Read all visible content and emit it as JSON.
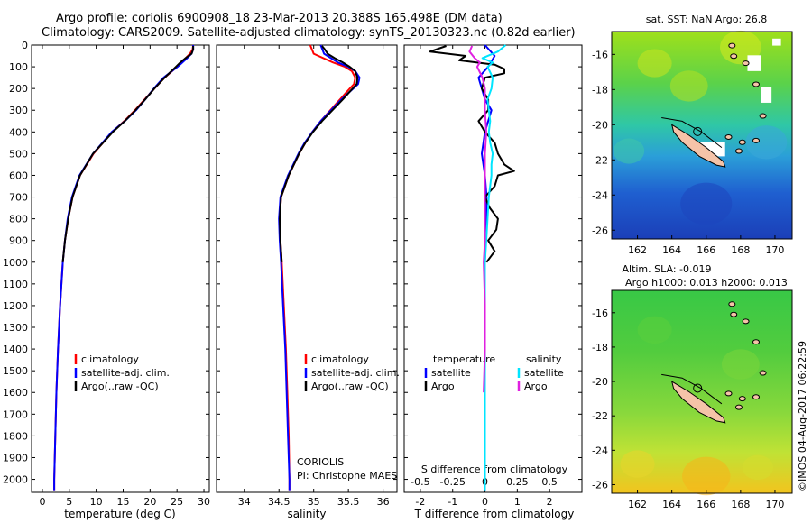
{
  "header": {
    "line1": "Argo profile: coriolis 6900908_18 23-Mar-2013 20.388S 165.498E (DM data)",
    "line2": "Climatology: CARS2009. Satellite-adjusted climatology: synTS_20130323.nc (0.82d earlier)"
  },
  "colors": {
    "climatology": "#ff0000",
    "satellite": "#0000ff",
    "argo": "#000000",
    "satellite_salinity": "#00e5ff",
    "argo_salinity": "#e020e0"
  },
  "depth_ticks": [
    0,
    100,
    200,
    300,
    400,
    500,
    600,
    700,
    800,
    900,
    1000,
    1100,
    1200,
    1300,
    1400,
    1500,
    1600,
    1700,
    1800,
    1900,
    2000
  ],
  "chart_data": [
    {
      "type": "line",
      "id": "temperature",
      "xlabel": "temperature (deg C)",
      "xlim": [
        -2,
        31
      ],
      "xticks": [
        0,
        5,
        10,
        15,
        20,
        25,
        30
      ],
      "ylim": [
        0,
        2060
      ],
      "legend": [
        "climatology",
        "satellite-adj. clim.",
        "Argo(..raw -QC)"
      ],
      "series": [
        {
          "name": "climatology",
          "color": "#ff0000",
          "depth": [
            0,
            20,
            40,
            60,
            80,
            100,
            150,
            200,
            250,
            300,
            350,
            400,
            500,
            600,
            700,
            800,
            900,
            1000,
            1200,
            1400,
            1600,
            1800,
            2000,
            2050
          ],
          "values": [
            28.0,
            27.9,
            27.4,
            26.6,
            25.8,
            25.0,
            22.7,
            20.8,
            19.0,
            17.2,
            15.2,
            13.0,
            9.5,
            7.0,
            5.6,
            4.8,
            4.2,
            3.8,
            3.3,
            2.9,
            2.6,
            2.4,
            2.2,
            2.2
          ]
        },
        {
          "name": "satellite-adj. clim.",
          "color": "#0000ff",
          "depth": [
            0,
            20,
            40,
            60,
            80,
            100,
            150,
            200,
            250,
            300,
            350,
            400,
            500,
            600,
            700,
            800,
            900,
            1000,
            1200,
            1400,
            1600,
            1800,
            2000,
            2050
          ],
          "values": [
            28.0,
            28.0,
            27.7,
            26.9,
            26.0,
            25.1,
            22.5,
            20.7,
            19.1,
            17.4,
            15.3,
            12.9,
            9.4,
            6.9,
            5.5,
            4.7,
            4.2,
            3.8,
            3.3,
            2.9,
            2.6,
            2.4,
            2.2,
            2.2
          ]
        },
        {
          "name": "Argo(..raw -QC)",
          "color": "#000000",
          "depth": [
            4,
            20,
            40,
            60,
            80,
            100,
            150,
            200,
            250,
            300,
            350,
            400,
            500,
            600,
            700,
            800,
            900,
            1000
          ],
          "values": [
            28.0,
            28.0,
            27.7,
            26.6,
            25.6,
            24.8,
            22.7,
            20.8,
            19.1,
            17.3,
            15.3,
            13.1,
            9.4,
            7.0,
            5.6,
            4.8,
            4.2,
            3.8
          ]
        }
      ]
    },
    {
      "type": "line",
      "id": "salinity",
      "xlabel": "salinity",
      "xlim": [
        33.6,
        36.2
      ],
      "xticks": [
        34,
        34.5,
        35,
        35.5,
        36
      ],
      "ylim": [
        0,
        2060
      ],
      "legend": [
        "climatology",
        "satellite-adj. clim.",
        "Argo(..raw -QC)"
      ],
      "annotation": [
        "CORIOLIS",
        "PI: Christophe MAES"
      ],
      "series": [
        {
          "name": "climatology",
          "color": "#ff0000",
          "depth": [
            0,
            40,
            80,
            100,
            120,
            150,
            180,
            200,
            250,
            300,
            350,
            400,
            450,
            500,
            600,
            700,
            800,
            900,
            1000,
            1200,
            1400,
            1600,
            1800,
            2000,
            2050
          ],
          "values": [
            34.95,
            35.0,
            35.28,
            35.45,
            35.55,
            35.6,
            35.58,
            35.52,
            35.38,
            35.24,
            35.1,
            34.98,
            34.88,
            34.79,
            34.64,
            34.53,
            34.51,
            34.52,
            34.54,
            34.57,
            34.6,
            34.62,
            34.64,
            34.65,
            34.65
          ]
        },
        {
          "name": "satellite-adj. clim.",
          "color": "#0000ff",
          "depth": [
            0,
            40,
            80,
            100,
            120,
            150,
            180,
            200,
            250,
            300,
            350,
            400,
            450,
            500,
            600,
            700,
            800,
            900,
            1000,
            1200,
            1400,
            1600,
            1800,
            2000,
            2050
          ],
          "values": [
            35.1,
            35.15,
            35.35,
            35.5,
            35.6,
            35.66,
            35.64,
            35.57,
            35.4,
            35.25,
            35.1,
            34.98,
            34.87,
            34.78,
            34.63,
            34.52,
            34.5,
            34.51,
            34.53,
            34.56,
            34.59,
            34.61,
            34.63,
            34.65,
            34.65
          ]
        },
        {
          "name": "Argo(..raw -QC)",
          "color": "#000000",
          "depth": [
            4,
            20,
            40,
            60,
            80,
            100,
            120,
            150,
            180,
            200,
            250,
            300,
            350,
            400,
            450,
            500,
            600,
            700,
            800,
            900,
            1000
          ],
          "values": [
            35.12,
            35.16,
            35.2,
            35.3,
            35.42,
            35.52,
            35.6,
            35.63,
            35.62,
            35.56,
            35.42,
            35.27,
            35.12,
            34.99,
            34.88,
            34.79,
            34.64,
            34.53,
            34.51,
            34.52,
            34.54
          ]
        }
      ]
    },
    {
      "type": "line",
      "id": "difference",
      "xlabel_bottom": "T difference from climatology",
      "xlabel_top": "S difference from climatology",
      "xlim": [
        -2.5,
        3.0
      ],
      "xticks": [
        -2,
        -1,
        0,
        1,
        2
      ],
      "s_xticks": [
        -0.5,
        -0.25,
        0,
        0.25,
        0.5
      ],
      "s_scale": 4,
      "ylim": [
        0,
        2060
      ],
      "legend_temperature_title": "temperature",
      "legend_salinity_title": "salinity",
      "legend_temperature": [
        "satellite",
        "Argo"
      ],
      "legend_salinity": [
        "satellite",
        "Argo"
      ],
      "series": [
        {
          "name": "temperature satellite",
          "color": "#0000ff",
          "depth": [
            0,
            50,
            100,
            150,
            200,
            250,
            300,
            350,
            400,
            450,
            500,
            600,
            700,
            800,
            900,
            1000,
            1200,
            1400,
            1600,
            1800,
            2000,
            2050
          ],
          "values": [
            0.0,
            0.3,
            0.1,
            -0.2,
            -0.1,
            0.0,
            0.2,
            0.1,
            0.0,
            -0.05,
            -0.1,
            0.0,
            0.05,
            0.05,
            0.02,
            0.0,
            0.0,
            0.0,
            0.0,
            0.0,
            0.0,
            0.0
          ]
        },
        {
          "name": "temperature Argo",
          "color": "#000000",
          "depth": [
            4,
            30,
            50,
            70,
            90,
            110,
            130,
            150,
            200,
            250,
            300,
            350,
            400,
            450,
            500,
            550,
            580,
            600,
            650,
            700,
            750,
            800,
            850,
            900,
            950,
            1000
          ],
          "values": [
            -1.2,
            -1.7,
            -0.6,
            -0.8,
            0.3,
            0.6,
            0.6,
            0.0,
            -0.1,
            0.1,
            0.1,
            -0.2,
            0.0,
            0.3,
            0.4,
            0.6,
            0.9,
            0.4,
            0.3,
            0.0,
            0.15,
            0.4,
            0.35,
            0.1,
            0.3,
            0.05
          ]
        },
        {
          "name": "salinity satellite",
          "color": "#00e5ff",
          "depth": [
            0,
            30,
            60,
            80,
            100,
            150,
            200,
            250,
            300,
            350,
            400,
            450,
            500,
            550,
            600,
            700,
            800,
            900,
            1000,
            1200,
            1400,
            1600,
            1800,
            2000,
            2050
          ],
          "values": [
            0.16,
            0.1,
            -0.02,
            0.06,
            0.02,
            0.06,
            0.05,
            0.02,
            0.03,
            0.04,
            0.03,
            0.04,
            0.06,
            0.05,
            0.05,
            0.03,
            0.02,
            0.01,
            0.0,
            0.0,
            0.0,
            0.0,
            0.0,
            0.0,
            0.0
          ]
        },
        {
          "name": "salinity Argo",
          "color": "#e020e0",
          "depth": [
            4,
            30,
            60,
            80,
            100,
            150,
            200,
            300,
            400,
            500,
            600,
            700,
            800,
            900,
            1000,
            1200,
            1400,
            1600
          ],
          "values": [
            -0.1,
            -0.12,
            -0.08,
            -0.04,
            -0.06,
            -0.02,
            0.0,
            0.0,
            0.01,
            0.0,
            0.0,
            0.0,
            0.0,
            0.0,
            -0.01,
            0.0,
            0.0,
            -0.01
          ]
        }
      ]
    },
    {
      "type": "heatmap",
      "id": "sst-map",
      "title": "sat. SST: NaN Argo: 26.8",
      "xticks": [
        162,
        164,
        166,
        168,
        170
      ],
      "yticks": [
        -16,
        -18,
        -20,
        -22,
        -24,
        -26
      ],
      "xlim": [
        160.5,
        171
      ],
      "ylim": [
        -26.5,
        -14.7
      ],
      "argo_position": [
        165.498,
        -20.388
      ]
    },
    {
      "type": "heatmap",
      "id": "sla-map",
      "title": "Altim. SLA: -0.019",
      "subtitle": "Argo h1000: 0.013 h2000: 0.013",
      "xticks": [
        162,
        164,
        166,
        168,
        170
      ],
      "yticks": [
        -16,
        -18,
        -20,
        -22,
        -24,
        -26
      ],
      "xlim": [
        160.5,
        171
      ],
      "ylim": [
        -26.5,
        -14.7
      ],
      "argo_position": [
        165.498,
        -20.388
      ]
    }
  ],
  "credit": "©IMOS 04-Aug-2017 06:22:59"
}
